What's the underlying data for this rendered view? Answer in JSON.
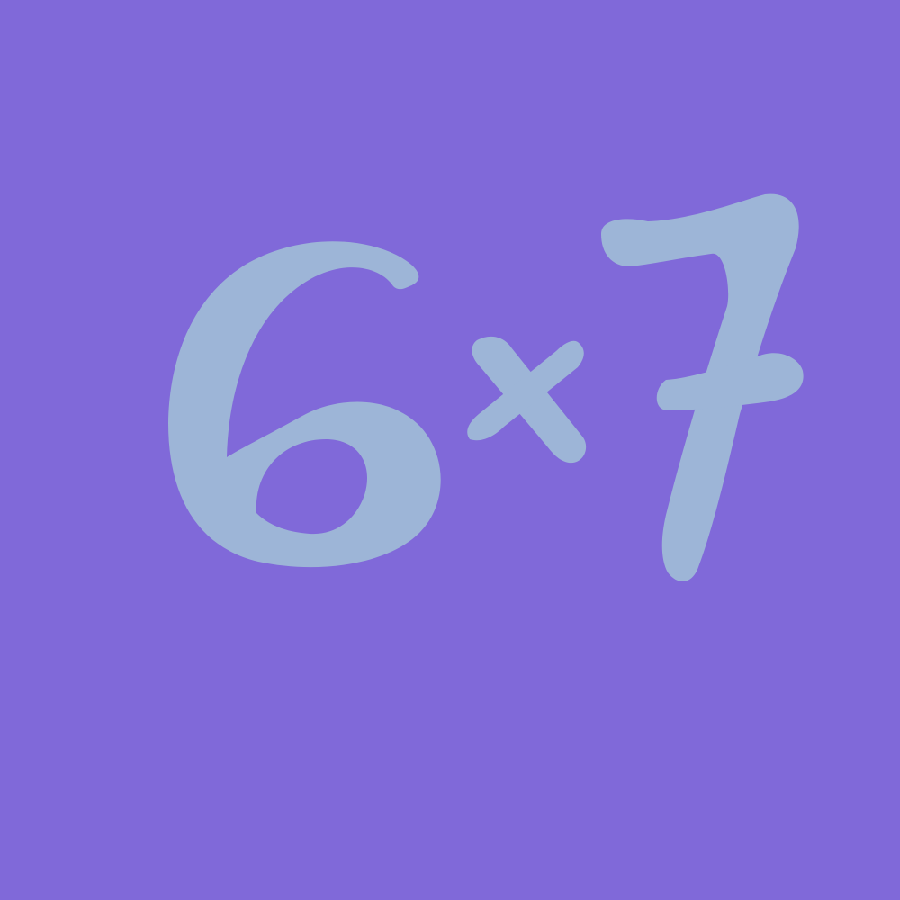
{
  "background_color": "#8069d9",
  "glyph_color": "#9db5d7",
  "expression": {
    "left_operand": "6",
    "operator": "×",
    "right_operand": "7"
  }
}
